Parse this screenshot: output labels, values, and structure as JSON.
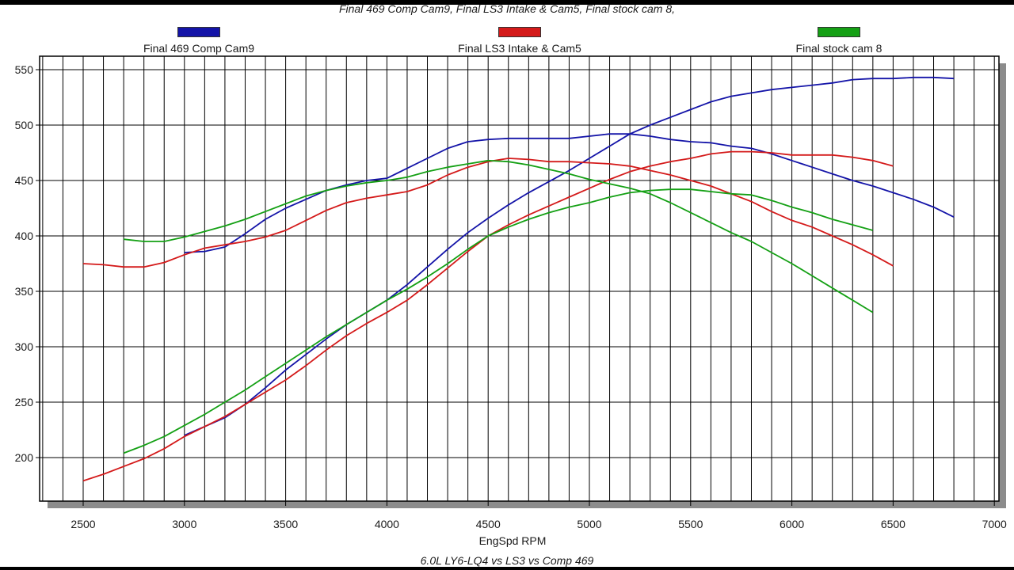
{
  "chart_data": {
    "type": "line",
    "title": "Final 469 Comp Cam9, Final LS3 Intake & Cam5, Final stock cam 8,",
    "subtitle": "6.0L LY6-LQ4 vs LS3 vs Comp 469",
    "xlabel": "EngSpd RPM",
    "ylabel": "",
    "xlim": [
      2300,
      7000
    ],
    "ylim": [
      160,
      560
    ],
    "x_ticks": [
      2500,
      3000,
      3500,
      4000,
      4500,
      5000,
      5500,
      6000,
      6500,
      7000
    ],
    "y_ticks": [
      200,
      250,
      300,
      350,
      400,
      450,
      500,
      550
    ],
    "grid": true,
    "legend_position": "top",
    "series": [
      {
        "name": "Final 469 Comp Cam9",
        "color": "#1414a8",
        "curves": [
          {
            "x": [
              3000,
              3100,
              3200,
              3300,
              3400,
              3500,
              3600,
              3700,
              3800,
              3900,
              4000,
              4100,
              4200,
              4300,
              4400,
              4500,
              4600,
              4700,
              4800,
              4900,
              5000,
              5100,
              5200,
              5300,
              5400,
              5500,
              5600,
              5700,
              5800,
              5900,
              6000,
              6100,
              6200,
              6300,
              6400,
              6500,
              6600,
              6700,
              6800
            ],
            "y": [
              385,
              386,
              390,
              402,
              415,
              425,
              433,
              441,
              446,
              450,
              452,
              461,
              470,
              479,
              485,
              487,
              488,
              488,
              488,
              488,
              490,
              492,
              492,
              490,
              487,
              485,
              484,
              481,
              479,
              474,
              468,
              462,
              456,
              450,
              445,
              439,
              433,
              426,
              417
            ]
          },
          {
            "x": [
              3000,
              3100,
              3200,
              3300,
              3400,
              3500,
              3600,
              3700,
              3800,
              3900,
              4000,
              4100,
              4200,
              4300,
              4400,
              4500,
              4600,
              4700,
              4800,
              4900,
              5000,
              5100,
              5200,
              5300,
              5400,
              5500,
              5600,
              5700,
              5800,
              5900,
              6000,
              6100,
              6200,
              6300,
              6400,
              6500,
              6600,
              6700,
              6800
            ],
            "y": [
              220,
              228,
              236,
              248,
              263,
              279,
              293,
              307,
              320,
              331,
              342,
              356,
              372,
              388,
              403,
              416,
              428,
              439,
              449,
              459,
              470,
              481,
              492,
              500,
              507,
              514,
              521,
              526,
              529,
              532,
              534,
              536,
              538,
              541,
              542,
              542,
              543,
              543,
              542
            ]
          }
        ]
      },
      {
        "name": "Final LS3 Intake & Cam5",
        "color": "#d41a1a",
        "curves": [
          {
            "x": [
              2500,
              2600,
              2700,
              2800,
              2900,
              3000,
              3100,
              3200,
              3300,
              3400,
              3500,
              3600,
              3700,
              3800,
              3900,
              4000,
              4100,
              4200,
              4300,
              4400,
              4500,
              4600,
              4700,
              4800,
              4900,
              5000,
              5100,
              5200,
              5300,
              5400,
              5500,
              5600,
              5700,
              5800,
              5900,
              6000,
              6100,
              6200,
              6300,
              6400,
              6500
            ],
            "y": [
              375,
              374,
              372,
              372,
              376,
              383,
              389,
              392,
              395,
              399,
              405,
              414,
              423,
              430,
              434,
              437,
              440,
              446,
              455,
              462,
              467,
              470,
              469,
              467,
              467,
              466,
              465,
              463,
              459,
              455,
              450,
              445,
              438,
              431,
              422,
              414,
              408,
              400,
              392,
              383,
              373
            ]
          },
          {
            "x": [
              2500,
              2600,
              2700,
              2800,
              2900,
              3000,
              3100,
              3200,
              3300,
              3400,
              3500,
              3600,
              3700,
              3800,
              3900,
              4000,
              4100,
              4200,
              4300,
              4400,
              4500,
              4600,
              4700,
              4800,
              4900,
              5000,
              5100,
              5200,
              5300,
              5400,
              5500,
              5600,
              5700,
              5800,
              5900,
              6000,
              6100,
              6200,
              6300,
              6400,
              6500
            ],
            "y": [
              179,
              185,
              192,
              199,
              208,
              219,
              228,
              237,
              248,
              259,
              270,
              283,
              297,
              310,
              321,
              331,
              342,
              356,
              371,
              386,
              400,
              410,
              419,
              427,
              435,
              443,
              451,
              458,
              463,
              467,
              470,
              474,
              476,
              476,
              475,
              473,
              473,
              473,
              471,
              468,
              463
            ]
          }
        ]
      },
      {
        "name": "Final stock cam 8",
        "color": "#14a014",
        "curves": [
          {
            "x": [
              2700,
              2800,
              2900,
              3000,
              3100,
              3200,
              3300,
              3400,
              3500,
              3600,
              3700,
              3800,
              3900,
              4000,
              4100,
              4200,
              4300,
              4400,
              4500,
              4600,
              4700,
              4800,
              4900,
              5000,
              5100,
              5200,
              5300,
              5400,
              5500,
              5600,
              5700,
              5800,
              5900,
              6000,
              6100,
              6200,
              6300,
              6400
            ],
            "y": [
              397,
              395,
              395,
              399,
              404,
              409,
              415,
              422,
              429,
              436,
              441,
              445,
              448,
              450,
              453,
              458,
              462,
              465,
              468,
              467,
              464,
              460,
              456,
              451,
              447,
              443,
              438,
              430,
              421,
              412,
              403,
              395,
              385,
              375,
              364,
              353,
              342,
              331
            ]
          },
          {
            "x": [
              2700,
              2800,
              2900,
              3000,
              3100,
              3200,
              3300,
              3400,
              3500,
              3600,
              3700,
              3800,
              3900,
              4000,
              4100,
              4200,
              4300,
              4400,
              4500,
              4600,
              4700,
              4800,
              4900,
              5000,
              5100,
              5200,
              5300,
              5400,
              5500,
              5600,
              5700,
              5800,
              5900,
              6000,
              6100,
              6200,
              6300,
              6400
            ],
            "y": [
              204,
              211,
              219,
              229,
              239,
              250,
              261,
              273,
              285,
              297,
              309,
              320,
              331,
              342,
              352,
              363,
              375,
              388,
              400,
              408,
              415,
              421,
              426,
              430,
              435,
              439,
              441,
              442,
              442,
              440,
              438,
              437,
              432,
              426,
              421,
              415,
              410,
              405
            ]
          }
        ]
      }
    ]
  }
}
